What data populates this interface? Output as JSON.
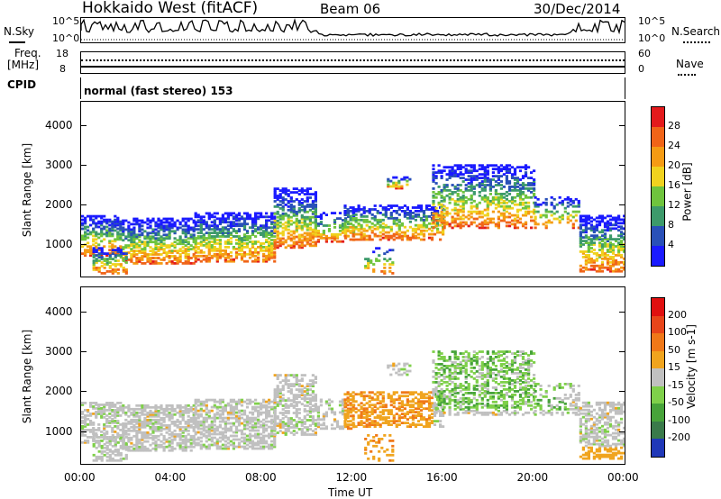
{
  "header": {
    "radar": "Hokkaido West (fitACF)",
    "beam": "Beam 06",
    "date": "30/Dec/2014"
  },
  "top_panels": {
    "nsky_label": "N.Sky",
    "nsky_scale_hi": "10^5",
    "nsky_scale_lo": "10^0",
    "nsearch_label": "N.Search",
    "nsearch_scale_hi": "10^5",
    "nsearch_scale_lo": "10^0",
    "freq_label": "Freq.",
    "freq_unit": "[MHz]",
    "freq_hi": "18",
    "freq_lo": "8",
    "nave_label": "Nave",
    "nave_hi": "60",
    "nave_lo": "0",
    "cpid_label": "CPID",
    "cpid_value": "normal (fast stereo) 153"
  },
  "chart_data": [
    {
      "type": "heatmap",
      "name": "power",
      "ylabel": "Slant Range [km]",
      "xlabel": "",
      "yticks": [
        1000,
        2000,
        3000,
        4000
      ],
      "ylim": [
        180,
        4600
      ],
      "xlim": [
        0,
        24
      ],
      "xticks_hours": [
        0,
        4,
        8,
        12,
        16,
        20,
        24
      ],
      "colorbar": {
        "label": "Power [dB]",
        "tick_labels": [
          "4",
          "8",
          "12",
          "16",
          "20",
          "24",
          "28"
        ],
        "colors": [
          "#1a1aff",
          "#2950b8",
          "#3d9a6b",
          "#6fc43d",
          "#f0d21e",
          "#f59b14",
          "#f06418",
          "#e31a1c"
        ]
      }
    },
    {
      "type": "heatmap",
      "name": "velocity",
      "ylabel": "Slant Range [km]",
      "xlabel": "Time UT",
      "yticks": [
        1000,
        2000,
        3000,
        4000
      ],
      "ylim": [
        180,
        4600
      ],
      "xlim": [
        0,
        24
      ],
      "xtick_labels": [
        "00:00",
        "04:00",
        "08:00",
        "12:00",
        "16:00",
        "20:00",
        "00:00"
      ],
      "colorbar": {
        "label": "Velocity [m s-1]",
        "tick_labels": [
          "200",
          "100",
          "50",
          "15",
          "-15",
          "-50",
          "-100",
          "-200"
        ],
        "colors": [
          "#2038b8",
          "#3a7a4a",
          "#47a33a",
          "#7fd04a",
          "#c0c0c0",
          "#f0a41e",
          "#f07818",
          "#e8451a",
          "#e01010"
        ]
      }
    }
  ]
}
